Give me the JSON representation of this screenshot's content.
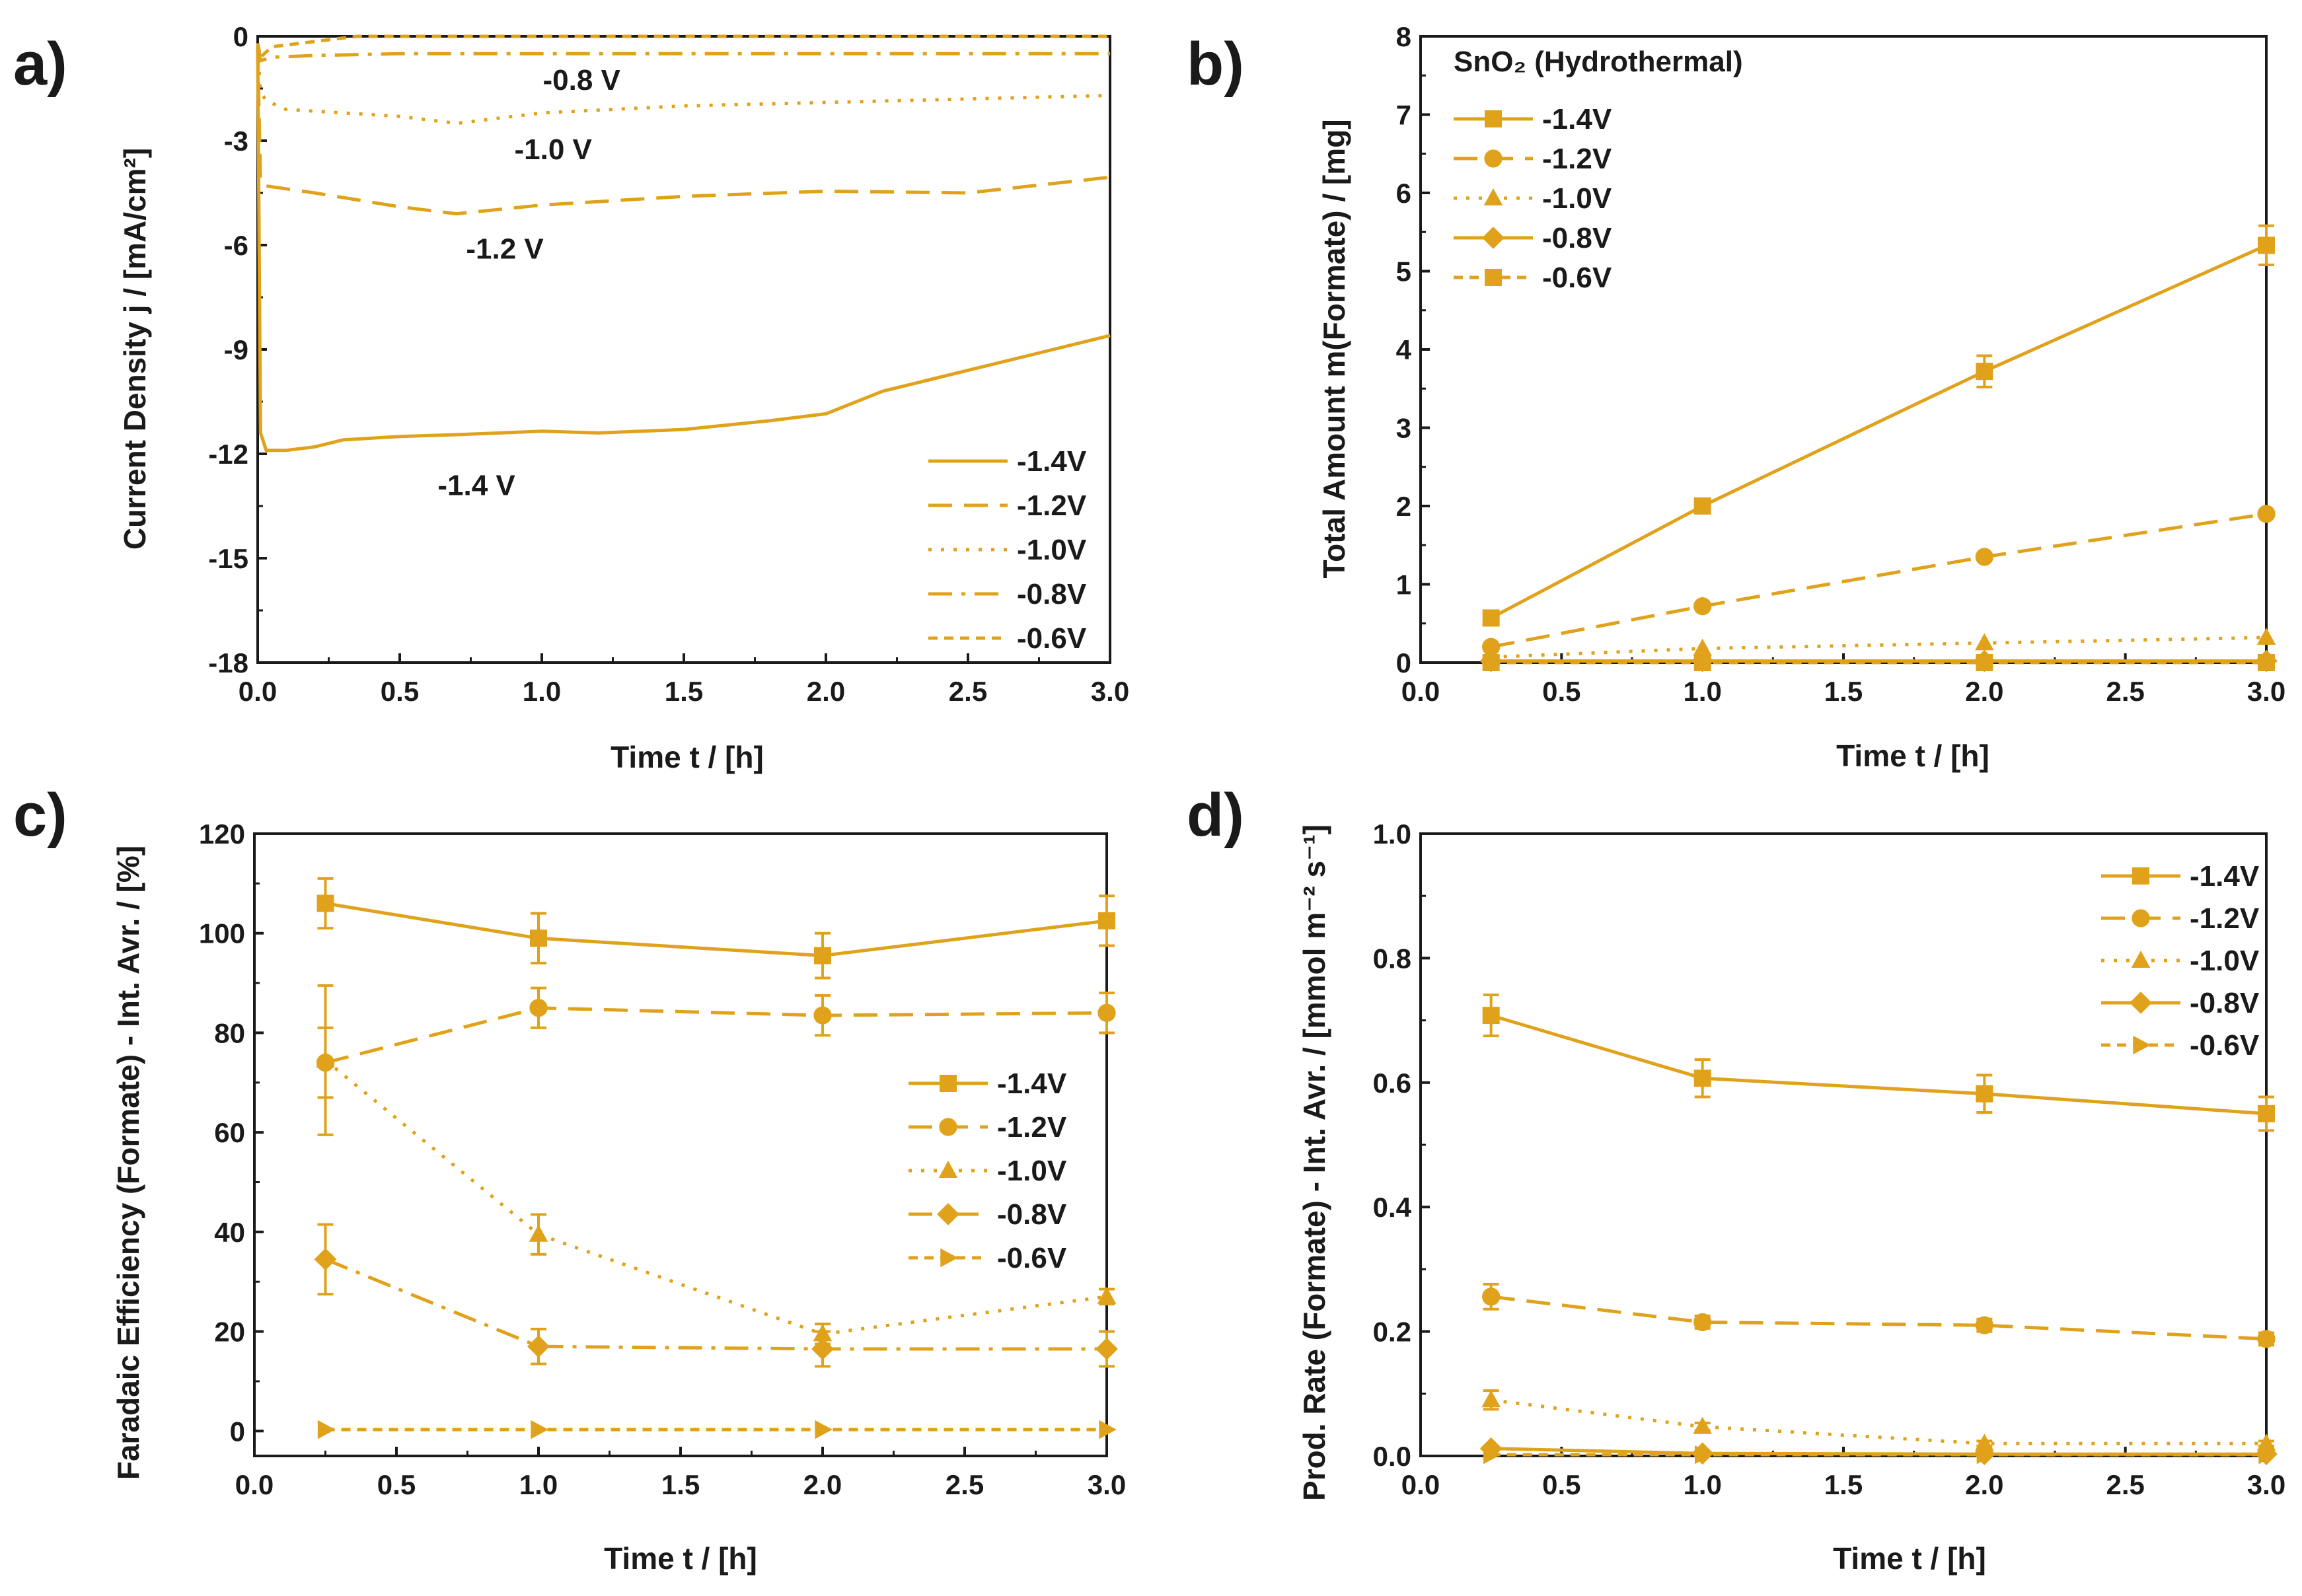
{
  "colors": {
    "series": "#E0A21B",
    "axis": "#1a1a1a"
  },
  "chart_data": [
    {
      "id": "a",
      "panel_label": "a)",
      "type": "line",
      "xlabel": "Time t / [h]",
      "ylabel": "Current Density j / [mA/cm²]",
      "xlim": [
        0,
        3.0
      ],
      "ylim": [
        -18,
        0
      ],
      "xticks": [
        0.0,
        0.5,
        1.0,
        1.5,
        2.0,
        2.5,
        3.0
      ],
      "xtick_labels": [
        "0.0",
        "0.5",
        "1.0",
        "1.5",
        "2.0",
        "2.5",
        "3.0"
      ],
      "yticks": [
        0,
        -3,
        -6,
        -9,
        -12,
        -15,
        -18
      ],
      "ytick_labels": [
        "0",
        "-3",
        "-6",
        "-9",
        "-12",
        "-15",
        "-18"
      ],
      "legend_position": "bottom-right",
      "series": [
        {
          "name": "-1.4V",
          "dash": "solid",
          "marker": "none",
          "x": [
            0,
            0.01,
            0.03,
            0.1,
            0.2,
            0.3,
            0.5,
            0.7,
            1.0,
            1.2,
            1.5,
            1.8,
            2.0,
            2.2,
            2.5,
            2.8,
            3.0
          ],
          "y": [
            -0.3,
            -11.4,
            -11.9,
            -11.9,
            -11.8,
            -11.6,
            -11.5,
            -11.45,
            -11.35,
            -11.4,
            -11.3,
            -11.05,
            -10.85,
            -10.2,
            -9.6,
            -9.0,
            -8.6
          ]
        },
        {
          "name": "-1.2V",
          "dash": "dash",
          "marker": "none",
          "x": [
            0,
            0.01,
            0.03,
            0.2,
            0.5,
            0.7,
            1.0,
            1.5,
            2.0,
            2.5,
            3.0
          ],
          "y": [
            -0.3,
            -4.2,
            -4.3,
            -4.5,
            -4.9,
            -5.1,
            -4.85,
            -4.6,
            -4.45,
            -4.5,
            -4.05
          ]
        },
        {
          "name": "-1.0V",
          "dash": "dot",
          "marker": "none",
          "x": [
            0,
            0.01,
            0.03,
            0.1,
            0.3,
            0.5,
            0.7,
            1.0,
            1.5,
            2.0,
            2.5,
            3.0
          ],
          "y": [
            -0.3,
            -1.6,
            -1.85,
            -2.1,
            -2.2,
            -2.3,
            -2.5,
            -2.2,
            -2.0,
            -1.9,
            -1.8,
            -1.7
          ]
        },
        {
          "name": "-0.8V",
          "dash": "dashdot",
          "marker": "none",
          "x": [
            0,
            0.01,
            0.05,
            0.2,
            0.5,
            1.0,
            1.5,
            2.0,
            2.5,
            3.0
          ],
          "y": [
            -0.2,
            -0.7,
            -0.6,
            -0.55,
            -0.5,
            -0.5,
            -0.5,
            -0.5,
            -0.5,
            -0.5
          ]
        },
        {
          "name": "-0.6V",
          "dash": "shortdash",
          "marker": "none",
          "x": [
            0,
            0.01,
            0.05,
            0.2,
            0.35,
            0.5,
            1.0,
            2.0,
            3.0
          ],
          "y": [
            -0.2,
            -0.6,
            -0.3,
            -0.15,
            0,
            0,
            0,
            0,
            0
          ]
        }
      ],
      "annotations": [
        {
          "text": "-0.8 V",
          "x": 1.14,
          "y": -1.25
        },
        {
          "text": "-1.0 V",
          "x": 1.04,
          "y": -3.25
        },
        {
          "text": "-1.2 V",
          "x": 0.87,
          "y": -6.1
        },
        {
          "text": "-1.4 V",
          "x": 0.77,
          "y": -12.9
        }
      ]
    },
    {
      "id": "b",
      "panel_label": "b)",
      "type": "line",
      "xlabel": "Time t / [h]",
      "ylabel": "Total Amount m(Formate) / [mg]",
      "legend_title": "SnO₂ (Hydrothermal)",
      "xlim": [
        0,
        3.0
      ],
      "ylim": [
        0,
        8
      ],
      "xticks": [
        0.0,
        0.5,
        1.0,
        1.5,
        2.0,
        2.5,
        3.0
      ],
      "xtick_labels": [
        "0.0",
        "0.5",
        "1.0",
        "1.5",
        "2.0",
        "2.5",
        "3.0"
      ],
      "yticks": [
        0,
        1,
        2,
        3,
        4,
        5,
        6,
        7,
        8
      ],
      "ytick_labels": [
        "0",
        "1",
        "2",
        "3",
        "4",
        "5",
        "6",
        "7",
        "8"
      ],
      "legend_position": "top-left",
      "series": [
        {
          "name": "-1.4V",
          "dash": "solid",
          "marker": "square",
          "x": [
            0.25,
            1.0,
            2.0,
            3.0
          ],
          "y": [
            0.57,
            2.0,
            3.72,
            5.33
          ],
          "err": [
            0.05,
            0.08,
            0.2,
            0.25
          ]
        },
        {
          "name": "-1.2V",
          "dash": "dash",
          "marker": "circle",
          "x": [
            0.25,
            1.0,
            2.0,
            3.0
          ],
          "y": [
            0.2,
            0.72,
            1.35,
            1.9
          ],
          "err": [
            0,
            0,
            0,
            0
          ]
        },
        {
          "name": "-1.0V",
          "dash": "dot",
          "marker": "triangle",
          "x": [
            0.25,
            1.0,
            2.0,
            3.0
          ],
          "y": [
            0.07,
            0.18,
            0.25,
            0.32
          ],
          "err": [
            0,
            0,
            0,
            0
          ]
        },
        {
          "name": "-0.8V",
          "dash": "solid",
          "marker": "diamond",
          "x": [
            0.25,
            1.0,
            2.0,
            3.0
          ],
          "y": [
            0.02,
            0.02,
            0.02,
            0.02
          ],
          "err": [
            0,
            0,
            0,
            0
          ]
        },
        {
          "name": "-0.6V",
          "dash": "shortdash",
          "marker": "square",
          "x": [
            0.25,
            1.0,
            2.0,
            3.0
          ],
          "y": [
            0.0,
            0.0,
            0.0,
            0.0
          ],
          "err": [
            0,
            0,
            0,
            0
          ]
        }
      ]
    },
    {
      "id": "c",
      "panel_label": "c)",
      "type": "line",
      "xlabel": "Time t / [h]",
      "ylabel": "Faradaic Efficiency (Formate) - Int. Avr. / [%]",
      "xlim": [
        0,
        3.0
      ],
      "ylim": [
        -5,
        120
      ],
      "xticks": [
        0.0,
        0.5,
        1.0,
        1.5,
        2.0,
        2.5,
        3.0
      ],
      "xtick_labels": [
        "0.0",
        "0.5",
        "1.0",
        "1.5",
        "2.0",
        "2.5",
        "3.0"
      ],
      "yticks": [
        0,
        20,
        40,
        60,
        80,
        100,
        120
      ],
      "ytick_labels": [
        "0",
        "20",
        "40",
        "60",
        "80",
        "100",
        "120"
      ],
      "legend_position": "center-right",
      "series": [
        {
          "name": "-1.4V",
          "dash": "solid",
          "marker": "square",
          "x": [
            0.25,
            1.0,
            2.0,
            3.0
          ],
          "y": [
            106,
            99,
            95.5,
            102.5
          ],
          "err": [
            5,
            5,
            4.5,
            5
          ]
        },
        {
          "name": "-1.2V",
          "dash": "dash",
          "marker": "circle",
          "x": [
            0.25,
            1.0,
            2.0,
            3.0
          ],
          "y": [
            74,
            85,
            83.5,
            84
          ],
          "err": [
            7,
            4,
            4,
            4
          ]
        },
        {
          "name": "-1.0V",
          "dash": "dot",
          "marker": "triangle",
          "x": [
            0.25,
            1.0,
            2.0,
            3.0
          ],
          "y": [
            74.5,
            39.5,
            19.5,
            27
          ],
          "err": [
            15,
            4,
            2,
            1.5
          ]
        },
        {
          "name": "-0.8V",
          "dash": "dashdot",
          "marker": "diamond",
          "x": [
            0.25,
            1.0,
            2.0,
            3.0
          ],
          "y": [
            34.5,
            17,
            16.5,
            16.5
          ],
          "err": [
            7,
            3.5,
            3.5,
            3.5
          ]
        },
        {
          "name": "-0.6V",
          "dash": "shortdash",
          "marker": "triangle-right",
          "x": [
            0.25,
            1.0,
            2.0,
            3.0
          ],
          "y": [
            0.3,
            0.3,
            0.3,
            0.3
          ],
          "err": [
            0,
            0,
            0,
            0
          ]
        }
      ]
    },
    {
      "id": "d",
      "panel_label": "d)",
      "type": "line",
      "xlabel": "Time t / [h]",
      "ylabel": "Prod. Rate (Formate) - Int. Avr. / [mmol m⁻² s⁻¹]",
      "xlim": [
        0,
        3.0
      ],
      "ylim": [
        0,
        1.0
      ],
      "xticks": [
        0.0,
        0.5,
        1.0,
        1.5,
        2.0,
        2.5,
        3.0
      ],
      "xtick_labels": [
        "0.0",
        "0.5",
        "1.0",
        "1.5",
        "2.0",
        "2.5",
        "3.0"
      ],
      "yticks": [
        0.0,
        0.2,
        0.4,
        0.6,
        0.8,
        1.0
      ],
      "ytick_labels": [
        "0.0",
        "0.2",
        "0.4",
        "0.6",
        "0.8",
        "1.0"
      ],
      "legend_position": "top-right",
      "series": [
        {
          "name": "-1.4V",
          "dash": "solid",
          "marker": "square",
          "x": [
            0.25,
            1.0,
            2.0,
            3.0
          ],
          "y": [
            0.708,
            0.607,
            0.582,
            0.55
          ],
          "err": [
            0.033,
            0.03,
            0.03,
            0.027
          ]
        },
        {
          "name": "-1.2V",
          "dash": "dash",
          "marker": "circle",
          "x": [
            0.25,
            1.0,
            2.0,
            3.0
          ],
          "y": [
            0.256,
            0.215,
            0.21,
            0.188
          ],
          "err": [
            0.02,
            0.01,
            0.01,
            0.01
          ]
        },
        {
          "name": "-1.0V",
          "dash": "dot",
          "marker": "triangle",
          "x": [
            0.25,
            1.0,
            2.0,
            3.0
          ],
          "y": [
            0.09,
            0.047,
            0.02,
            0.02
          ],
          "err": [
            0.015,
            0.006,
            0.004,
            0.004
          ]
        },
        {
          "name": "-0.8V",
          "dash": "solid",
          "marker": "diamond",
          "x": [
            0.25,
            1.0,
            2.0,
            3.0
          ],
          "y": [
            0.012,
            0.004,
            0.003,
            0.003
          ],
          "err": [
            0,
            0,
            0,
            0
          ]
        },
        {
          "name": "-0.6V",
          "dash": "shortdash",
          "marker": "triangle-right",
          "x": [
            0.25,
            1.0,
            2.0,
            3.0
          ],
          "y": [
            0.002,
            0.002,
            0.002,
            0.002
          ],
          "err": [
            0,
            0,
            0,
            0
          ]
        }
      ]
    }
  ]
}
